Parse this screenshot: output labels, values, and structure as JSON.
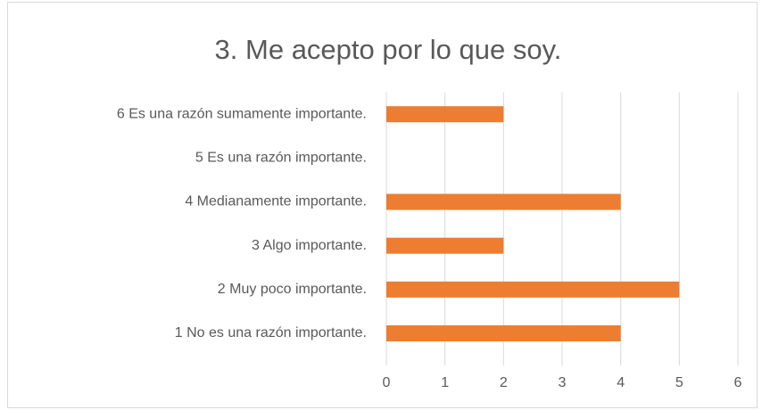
{
  "chart_data": {
    "type": "bar",
    "orientation": "horizontal",
    "title": "3. Me acepto por lo que soy.",
    "categories": [
      "1 No es una razón importante.",
      "2 Muy poco importante.",
      "3 Algo importante.",
      "4 Medianamente importante.",
      "5 Es una razón importante.",
      "6 Es una razón sumamente importante."
    ],
    "values": [
      4,
      5,
      2,
      4,
      0,
      2
    ],
    "color": "#ed7d31",
    "xlim": [
      0,
      6
    ],
    "xticks": [
      0,
      1,
      2,
      3,
      4,
      5,
      6
    ],
    "grid": true
  }
}
